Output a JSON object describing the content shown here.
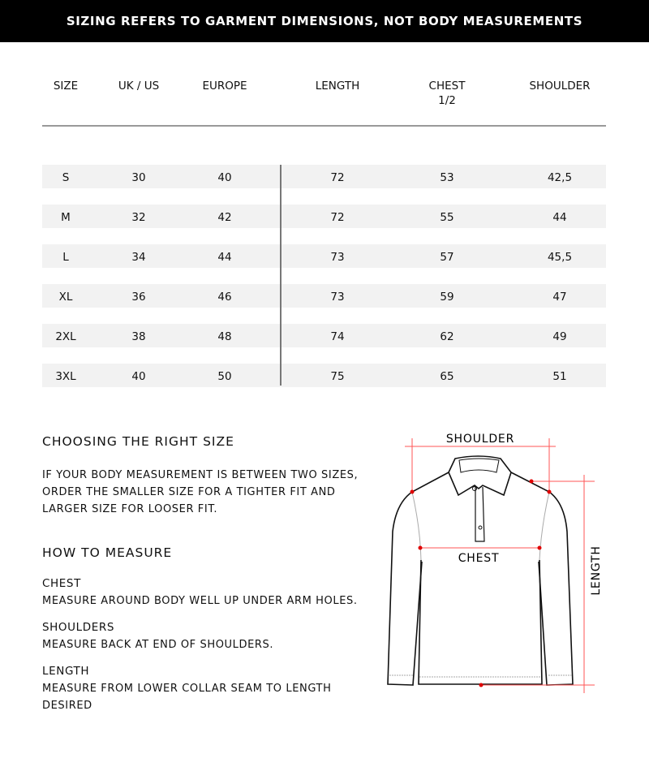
{
  "banner": "SIZING REFERS TO GARMENT DIMENSIONS, NOT BODY MEASUREMENTS",
  "table": {
    "headers": [
      "SIZE",
      "UK / US",
      "EUROPE",
      "LENGTH",
      "CHEST\n1/2",
      "SHOULDER"
    ],
    "rows": [
      [
        "S",
        "30",
        "40",
        "72",
        "53",
        "42,5"
      ],
      [
        "M",
        "32",
        "42",
        "72",
        "55",
        "44"
      ],
      [
        "L",
        "34",
        "44",
        "73",
        "57",
        "45,5"
      ],
      [
        "XL",
        "36",
        "46",
        "73",
        "59",
        "47"
      ],
      [
        "2XL",
        "38",
        "48",
        "74",
        "62",
        "49"
      ],
      [
        "3XL",
        "40",
        "50",
        "75",
        "65",
        "51"
      ]
    ]
  },
  "guide": {
    "choosing_title": "CHOOSING THE RIGHT SIZE",
    "choosing_lines": [
      "IF YOUR BODY MEASUREMENT IS BETWEEN TWO SIZES,",
      "ORDER THE SMALLER SIZE FOR A TIGHTER FIT AND",
      "LARGER SIZE FOR LOOSER FIT."
    ],
    "measure_title": "HOW TO MEASURE",
    "chest_title": "CHEST",
    "chest_text": "MEASURE AROUND BODY WELL UP UNDER ARM HOLES.",
    "shoulders_title": "SHOULDERS",
    "shoulders_text": "MEASURE BACK AT END OF SHOULDERS.",
    "length_title": "LENGTH",
    "length_lines": [
      "MEASURE FROM LOWER COLLAR SEAM TO LENGTH",
      "DESIRED"
    ]
  },
  "diagram": {
    "shoulder": "SHOULDER",
    "chest": "CHEST",
    "length": "LENGTH",
    "marker_color": "#e00000"
  }
}
